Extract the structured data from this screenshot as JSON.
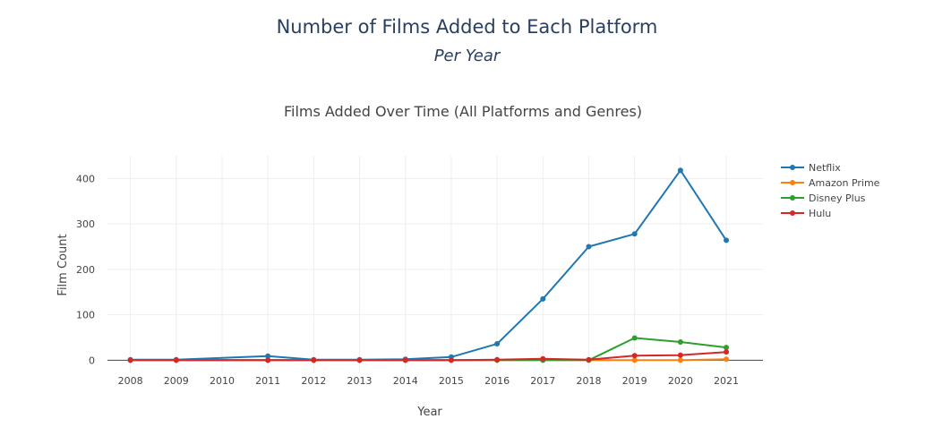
{
  "page": {
    "title": "Number of Films Added to Each Platform",
    "subtitle": "Per Year"
  },
  "chart_data": {
    "type": "line",
    "title": "Films Added Over Time (All Platforms and Genres)",
    "xlabel": "Year",
    "ylabel": "Film Count",
    "x": [
      2008,
      2009,
      2010,
      2011,
      2012,
      2013,
      2014,
      2015,
      2016,
      2017,
      2018,
      2019,
      2020,
      2021
    ],
    "xlim": [
      2007.5,
      2021.8
    ],
    "ylim": [
      -25,
      450
    ],
    "yticks": [
      0,
      100,
      200,
      300,
      400
    ],
    "grid": true,
    "legend": "top-right",
    "series": [
      {
        "name": "Netflix",
        "color": "#1f77b4",
        "points": [
          [
            2008,
            1
          ],
          [
            2009,
            1
          ],
          [
            2011,
            9
          ],
          [
            2012,
            1
          ],
          [
            2013,
            1
          ],
          [
            2014,
            2
          ],
          [
            2015,
            7
          ],
          [
            2016,
            36
          ],
          [
            2017,
            135
          ],
          [
            2018,
            250
          ],
          [
            2019,
            278
          ],
          [
            2020,
            418
          ],
          [
            2021,
            264
          ]
        ]
      },
      {
        "name": "Amazon Prime",
        "color": "#ff7f0e",
        "points": [
          [
            2008,
            0
          ],
          [
            2009,
            0
          ],
          [
            2011,
            0
          ],
          [
            2012,
            0
          ],
          [
            2013,
            0
          ],
          [
            2014,
            0
          ],
          [
            2015,
            0
          ],
          [
            2016,
            0
          ],
          [
            2017,
            0
          ],
          [
            2018,
            0
          ],
          [
            2019,
            0
          ],
          [
            2020,
            0
          ],
          [
            2021,
            2
          ]
        ]
      },
      {
        "name": "Disney Plus",
        "color": "#2ca02c",
        "points": [
          [
            2008,
            0
          ],
          [
            2009,
            0
          ],
          [
            2011,
            0
          ],
          [
            2012,
            0
          ],
          [
            2013,
            0
          ],
          [
            2014,
            0
          ],
          [
            2015,
            0
          ],
          [
            2016,
            0
          ],
          [
            2017,
            0
          ],
          [
            2018,
            0
          ],
          [
            2019,
            49
          ],
          [
            2020,
            40
          ],
          [
            2021,
            28
          ]
        ]
      },
      {
        "name": "Hulu",
        "color": "#d62728",
        "points": [
          [
            2008,
            0
          ],
          [
            2009,
            0
          ],
          [
            2011,
            0
          ],
          [
            2012,
            0
          ],
          [
            2013,
            0
          ],
          [
            2014,
            0
          ],
          [
            2015,
            0
          ],
          [
            2016,
            1
          ],
          [
            2017,
            3
          ],
          [
            2018,
            1
          ],
          [
            2019,
            10
          ],
          [
            2020,
            11
          ],
          [
            2021,
            18
          ]
        ]
      }
    ]
  }
}
